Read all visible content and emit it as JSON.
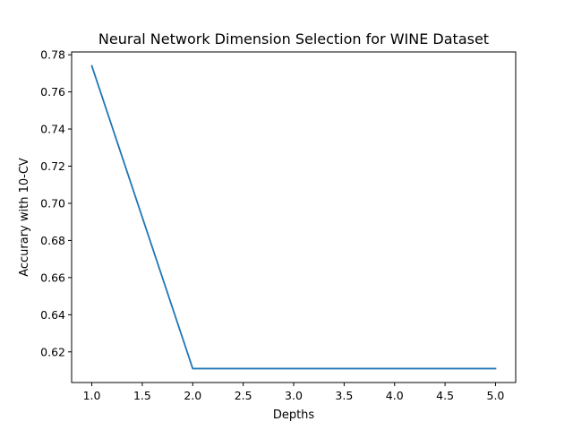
{
  "chart_data": {
    "type": "line",
    "title": "Neural Network Dimension Selection for WINE Dataset",
    "xlabel": "Depths",
    "ylabel": "Accurary with 10-CV",
    "xlim": [
      0.8,
      5.2
    ],
    "ylim": [
      0.6035,
      0.7815
    ],
    "xticks": [
      1.0,
      1.5,
      2.0,
      2.5,
      3.0,
      3.5,
      4.0,
      4.5,
      5.0
    ],
    "xtick_labels": [
      "1.0",
      "1.5",
      "2.0",
      "2.5",
      "3.0",
      "3.5",
      "4.0",
      "4.5",
      "5.0"
    ],
    "yticks": [
      0.62,
      0.64,
      0.66,
      0.68,
      0.7,
      0.72,
      0.74,
      0.76,
      0.78
    ],
    "ytick_labels": [
      "0.62",
      "0.64",
      "0.66",
      "0.68",
      "0.70",
      "0.72",
      "0.74",
      "0.76",
      "0.78"
    ],
    "grid": false,
    "series": [
      {
        "color": "#1f77b4",
        "x": [
          1,
          2,
          3,
          4,
          5
        ],
        "y": [
          0.774,
          0.611,
          0.611,
          0.611,
          0.611
        ]
      }
    ]
  }
}
